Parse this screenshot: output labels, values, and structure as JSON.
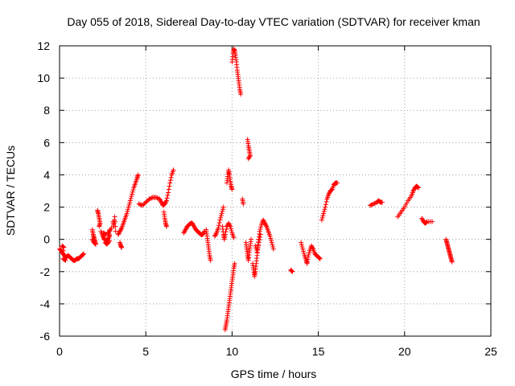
{
  "chart_data": {
    "type": "scatter",
    "title": "Day 055 of 2018, Sidereal Day-to-day VTEC variation (SDTVAR) for receiver kman",
    "xlabel": "GPS time / hours",
    "ylabel": "SDTVAR / TECUs",
    "xlim": [
      0,
      25
    ],
    "ylim": [
      -6,
      12
    ],
    "xticks": [
      0,
      5,
      10,
      15,
      20,
      25
    ],
    "yticks": [
      -6,
      -4,
      -2,
      0,
      2,
      4,
      6,
      8,
      10,
      12
    ],
    "grid": true,
    "marker": "+",
    "color": "#ff0000",
    "series": [
      {
        "name": "SDTVAR",
        "segments": [
          [
            [
              0.0,
              -0.6
            ],
            [
              0.1,
              -0.7
            ],
            [
              0.2,
              -0.9
            ],
            [
              0.3,
              -1.0
            ],
            [
              0.4,
              -1.1
            ],
            [
              0.5,
              -1.0
            ],
            [
              0.6,
              -1.1
            ],
            [
              0.7,
              -1.2
            ],
            [
              0.8,
              -1.3
            ],
            [
              0.9,
              -1.3
            ],
            [
              1.0,
              -1.2
            ],
            [
              1.1,
              -1.2
            ],
            [
              1.2,
              -1.1
            ],
            [
              1.3,
              -1.0
            ],
            [
              1.4,
              -0.9
            ]
          ],
          [
            [
              0.2,
              -1.2
            ],
            [
              0.35,
              -1.3
            ],
            [
              0.15,
              -0.4
            ],
            [
              0.25,
              -0.5
            ]
          ],
          [
            [
              1.9,
              0.6
            ],
            [
              1.95,
              0.3
            ],
            [
              2.0,
              0.1
            ],
            [
              2.05,
              -0.1
            ],
            [
              2.1,
              -0.3
            ],
            [
              2.0,
              -0.2
            ],
            [
              1.9,
              0.0
            ]
          ],
          [
            [
              2.2,
              1.8
            ],
            [
              2.25,
              1.6
            ],
            [
              2.3,
              1.3
            ],
            [
              2.35,
              1.0
            ],
            [
              2.3,
              0.8
            ]
          ],
          [
            [
              2.4,
              0.5
            ],
            [
              2.5,
              0.2
            ],
            [
              2.6,
              0.0
            ],
            [
              2.7,
              -0.1
            ],
            [
              2.8,
              0.0
            ],
            [
              2.9,
              0.2
            ],
            [
              2.85,
              0.4
            ],
            [
              3.0,
              0.7
            ],
            [
              2.7,
              0.3
            ],
            [
              2.55,
              0.4
            ],
            [
              2.65,
              -0.2
            ],
            [
              2.75,
              -0.3
            ],
            [
              2.9,
              -0.1
            ]
          ],
          [
            [
              3.1,
              1.1
            ],
            [
              3.15,
              0.8
            ],
            [
              3.2,
              1.4
            ],
            [
              3.25,
              0.5
            ]
          ],
          [
            [
              3.4,
              0.3
            ],
            [
              3.5,
              0.5
            ],
            [
              3.6,
              0.7
            ],
            [
              3.7,
              1.0
            ],
            [
              3.8,
              1.3
            ],
            [
              3.9,
              1.6
            ],
            [
              4.0,
              2.0
            ],
            [
              4.1,
              2.4
            ],
            [
              4.2,
              2.8
            ],
            [
              4.3,
              3.2
            ],
            [
              4.4,
              3.5
            ],
            [
              4.5,
              3.8
            ],
            [
              4.55,
              4.0
            ]
          ],
          [
            [
              3.5,
              -0.2
            ],
            [
              3.55,
              -0.4
            ],
            [
              3.6,
              -0.5
            ]
          ],
          [
            [
              4.6,
              2.2
            ],
            [
              4.8,
              2.1
            ],
            [
              5.0,
              2.3
            ],
            [
              5.2,
              2.5
            ],
            [
              5.4,
              2.6
            ],
            [
              5.6,
              2.6
            ],
            [
              5.8,
              2.5
            ],
            [
              5.9,
              2.3
            ],
            [
              6.0,
              2.1
            ],
            [
              6.1,
              2.2
            ],
            [
              6.2,
              2.4
            ],
            [
              6.3,
              2.9
            ],
            [
              6.4,
              3.5
            ],
            [
              6.5,
              4.0
            ],
            [
              6.6,
              4.3
            ]
          ],
          [
            [
              6.05,
              1.7
            ],
            [
              6.1,
              1.3
            ],
            [
              6.15,
              1.0
            ],
            [
              6.2,
              0.8
            ]
          ],
          [
            [
              7.2,
              0.4
            ],
            [
              7.3,
              0.6
            ],
            [
              7.4,
              0.8
            ],
            [
              7.5,
              0.9
            ],
            [
              7.6,
              1.0
            ],
            [
              7.7,
              1.0
            ],
            [
              7.8,
              0.8
            ],
            [
              7.9,
              0.6
            ],
            [
              8.0,
              0.5
            ],
            [
              8.1,
              0.4
            ],
            [
              8.2,
              0.3
            ],
            [
              8.3,
              0.3
            ],
            [
              8.4,
              0.5
            ]
          ],
          [
            [
              8.5,
              0.6
            ],
            [
              8.55,
              0.2
            ],
            [
              8.6,
              -0.2
            ],
            [
              8.65,
              -0.6
            ],
            [
              8.7,
              -1.0
            ],
            [
              8.75,
              -1.3
            ]
          ],
          [
            [
              9.0,
              0.2
            ],
            [
              9.1,
              0.4
            ],
            [
              9.2,
              0.7
            ],
            [
              9.3,
              1.2
            ],
            [
              9.4,
              1.6
            ],
            [
              9.5,
              2.0
            ]
          ],
          [
            [
              9.45,
              0.8
            ],
            [
              9.5,
              0.3
            ],
            [
              9.55,
              0.0
            ],
            [
              9.6,
              0.3
            ],
            [
              9.7,
              0.8
            ],
            [
              9.8,
              1.0
            ],
            [
              9.9,
              0.8
            ],
            [
              10.0,
              0.4
            ],
            [
              10.1,
              0.1
            ]
          ],
          [
            [
              9.7,
              3.5
            ],
            [
              9.75,
              3.9
            ],
            [
              9.8,
              4.3
            ],
            [
              9.85,
              4.0
            ],
            [
              9.9,
              3.6
            ],
            [
              9.95,
              3.3
            ],
            [
              10.0,
              3.1
            ]
          ],
          [
            [
              9.6,
              -5.6
            ],
            [
              9.65,
              -5.3
            ],
            [
              9.7,
              -5.0
            ],
            [
              9.75,
              -4.6
            ],
            [
              9.8,
              -4.2
            ],
            [
              9.85,
              -3.8
            ],
            [
              9.9,
              -3.4
            ],
            [
              9.95,
              -3.0
            ],
            [
              10.0,
              -2.6
            ],
            [
              10.05,
              -2.2
            ],
            [
              10.1,
              -1.8
            ],
            [
              10.15,
              -1.5
            ]
          ],
          [
            [
              10.0,
              11.0
            ],
            [
              10.05,
              11.5
            ],
            [
              10.1,
              11.8
            ],
            [
              10.15,
              11.7
            ],
            [
              10.2,
              11.4
            ],
            [
              10.25,
              11.0
            ],
            [
              10.3,
              10.5
            ],
            [
              10.35,
              10.1
            ],
            [
              10.4,
              9.7
            ],
            [
              10.45,
              9.3
            ],
            [
              10.5,
              9.0
            ]
          ],
          [
            [
              10.6,
              2.5
            ],
            [
              10.65,
              2.2
            ]
          ],
          [
            [
              10.9,
              6.2
            ],
            [
              10.95,
              5.8
            ],
            [
              11.0,
              5.5
            ],
            [
              11.05,
              5.2
            ],
            [
              10.95,
              5.0
            ]
          ],
          [
            [
              10.8,
              -0.2
            ],
            [
              10.85,
              -0.6
            ],
            [
              10.9,
              -1.0
            ],
            [
              10.95,
              -1.3
            ],
            [
              11.0,
              -0.8
            ],
            [
              11.05,
              -0.4
            ],
            [
              11.1,
              0.0
            ]
          ],
          [
            [
              11.2,
              -1.5
            ],
            [
              11.25,
              -1.9
            ],
            [
              11.3,
              -2.3
            ],
            [
              11.35,
              -2.0
            ],
            [
              11.4,
              -1.5
            ],
            [
              11.45,
              -1.0
            ],
            [
              11.5,
              -0.5
            ],
            [
              11.55,
              0.0
            ],
            [
              11.6,
              0.5
            ],
            [
              11.7,
              0.9
            ],
            [
              11.8,
              1.2
            ],
            [
              11.9,
              1.0
            ],
            [
              12.0,
              0.8
            ],
            [
              12.1,
              0.5
            ],
            [
              12.2,
              0.2
            ],
            [
              12.3,
              -0.2
            ],
            [
              12.4,
              -0.6
            ]
          ],
          [
            [
              11.35,
              -0.4
            ],
            [
              11.45,
              -0.8
            ],
            [
              11.55,
              -0.2
            ],
            [
              11.65,
              0.3
            ]
          ],
          [
            [
              13.4,
              -1.9
            ],
            [
              13.5,
              -2.0
            ]
          ],
          [
            [
              14.0,
              -0.2
            ],
            [
              14.1,
              -0.6
            ],
            [
              14.2,
              -1.0
            ],
            [
              14.3,
              -1.3
            ],
            [
              14.35,
              -1.5
            ],
            [
              14.4,
              -1.1
            ],
            [
              14.5,
              -0.7
            ],
            [
              14.6,
              -0.4
            ],
            [
              14.7,
              -0.6
            ],
            [
              14.8,
              -0.9
            ],
            [
              14.9,
              -1.0
            ],
            [
              15.0,
              -1.1
            ],
            [
              15.1,
              -1.2
            ]
          ],
          [
            [
              15.2,
              1.2
            ],
            [
              15.3,
              1.6
            ],
            [
              15.4,
              2.0
            ],
            [
              15.5,
              2.5
            ],
            [
              15.6,
              2.8
            ],
            [
              15.7,
              3.0
            ],
            [
              15.8,
              3.1
            ],
            [
              15.9,
              3.4
            ],
            [
              16.0,
              3.5
            ],
            [
              16.1,
              3.5
            ]
          ],
          [
            [
              18.0,
              2.1
            ],
            [
              18.2,
              2.2
            ],
            [
              18.4,
              2.3
            ],
            [
              18.5,
              2.4
            ],
            [
              18.6,
              2.3
            ],
            [
              18.7,
              2.3
            ]
          ],
          [
            [
              19.6,
              1.4
            ],
            [
              19.8,
              1.7
            ],
            [
              20.0,
              2.0
            ],
            [
              20.2,
              2.4
            ],
            [
              20.4,
              2.7
            ],
            [
              20.5,
              3.0
            ],
            [
              20.6,
              3.2
            ],
            [
              20.7,
              3.3
            ],
            [
              20.8,
              3.2
            ]
          ],
          [
            [
              21.0,
              1.3
            ],
            [
              21.1,
              1.1
            ],
            [
              21.2,
              1.0
            ],
            [
              21.3,
              1.1
            ],
            [
              21.6,
              1.1
            ]
          ],
          [
            [
              22.4,
              0.0
            ],
            [
              22.45,
              -0.2
            ],
            [
              22.5,
              -0.4
            ],
            [
              22.55,
              -0.6
            ],
            [
              22.6,
              -0.8
            ],
            [
              22.65,
              -1.0
            ],
            [
              22.7,
              -1.2
            ],
            [
              22.75,
              -1.4
            ]
          ]
        ]
      }
    ]
  }
}
